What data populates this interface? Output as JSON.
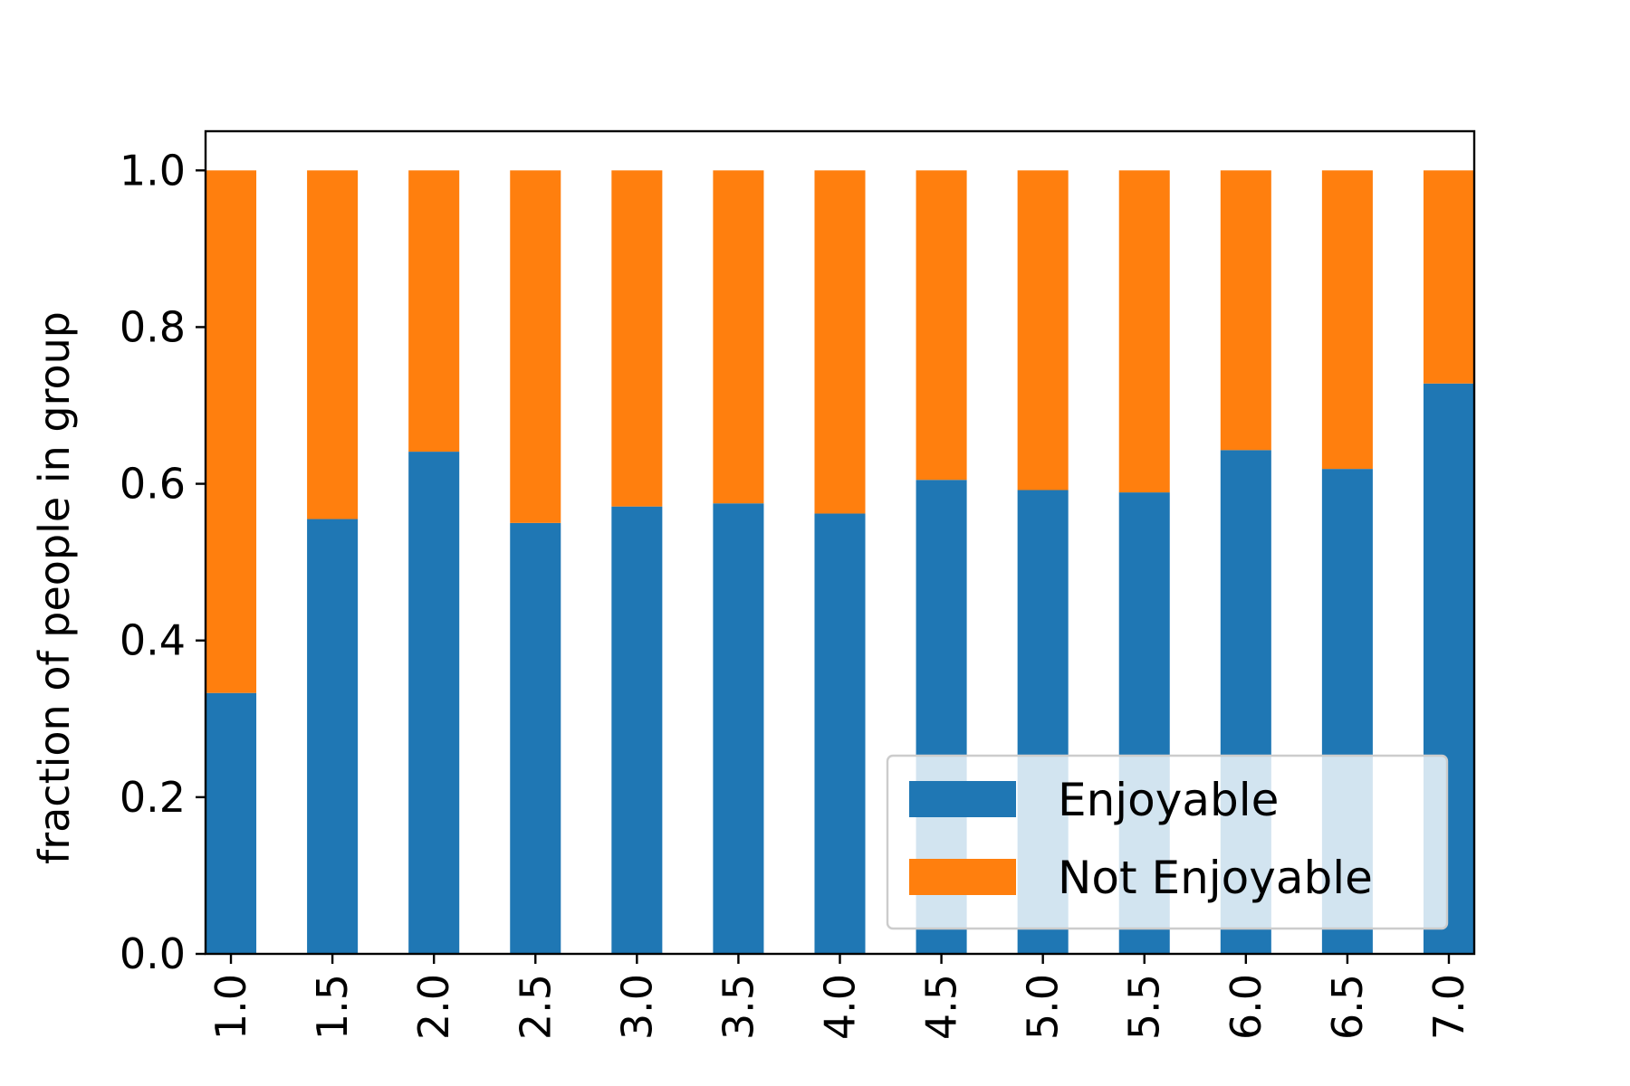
{
  "chart_data": {
    "type": "bar",
    "stacked": true,
    "categories": [
      "1.0",
      "1.5",
      "2.0",
      "2.5",
      "3.0",
      "3.5",
      "4.0",
      "4.5",
      "5.0",
      "5.5",
      "6.0",
      "6.5",
      "7.0"
    ],
    "series": [
      {
        "name": "Enjoyable",
        "color": "#1f77b4",
        "values": [
          0.333,
          0.555,
          0.641,
          0.55,
          0.571,
          0.575,
          0.562,
          0.605,
          0.592,
          0.589,
          0.643,
          0.619,
          0.728
        ]
      },
      {
        "name": "Not Enjoyable",
        "color": "#ff7f0e",
        "values": [
          0.667,
          0.445,
          0.359,
          0.45,
          0.429,
          0.425,
          0.438,
          0.395,
          0.408,
          0.411,
          0.357,
          0.381,
          0.272
        ]
      }
    ],
    "title": "",
    "xlabel": "",
    "ylabel": "fraction of people in group",
    "ylim": [
      0,
      1.05
    ],
    "yticks": [
      "0.0",
      "0.2",
      "0.4",
      "0.6",
      "0.8",
      "1.0"
    ],
    "grid": false,
    "legend_position": "lower-right"
  }
}
